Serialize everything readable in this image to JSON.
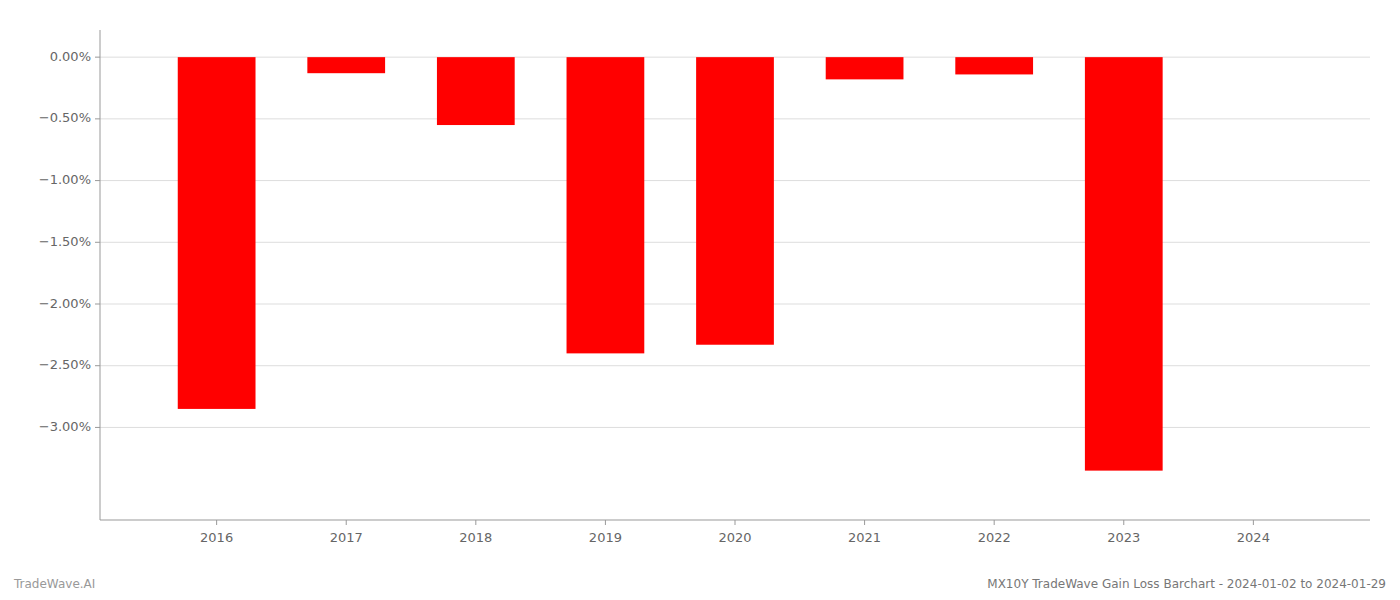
{
  "chart_data": {
    "type": "bar",
    "title": "MX10Y TradeWave Gain Loss Barchart - 2024-01-02 to 2024-01-29",
    "annotations": [
      "TradeWave.AI"
    ],
    "x": [
      2016,
      2017,
      2018,
      2019,
      2020,
      2021,
      2022,
      2023,
      2024
    ],
    "values": [
      -2.85,
      -0.13,
      -0.55,
      -2.4,
      -2.33,
      -0.18,
      -0.14,
      -3.35,
      0.0
    ],
    "color": "#ff0000",
    "xlim": [
      2015.1,
      2024.9
    ],
    "xticks": [
      2016,
      2017,
      2018,
      2019,
      2020,
      2021,
      2022,
      2023,
      2024
    ],
    "ylim": [
      -3.75,
      0.22
    ],
    "yticks": [
      {
        "value": 0.0,
        "label": "0.00%"
      },
      {
        "value": -0.5,
        "label": "−0.50%"
      },
      {
        "value": -1.0,
        "label": "−1.00%"
      },
      {
        "value": -1.5,
        "label": "−1.50%"
      },
      {
        "value": -2.0,
        "label": "−2.00%"
      },
      {
        "value": -2.5,
        "label": "−2.50%"
      },
      {
        "value": -3.0,
        "label": "−3.00%"
      }
    ],
    "grid": true
  }
}
